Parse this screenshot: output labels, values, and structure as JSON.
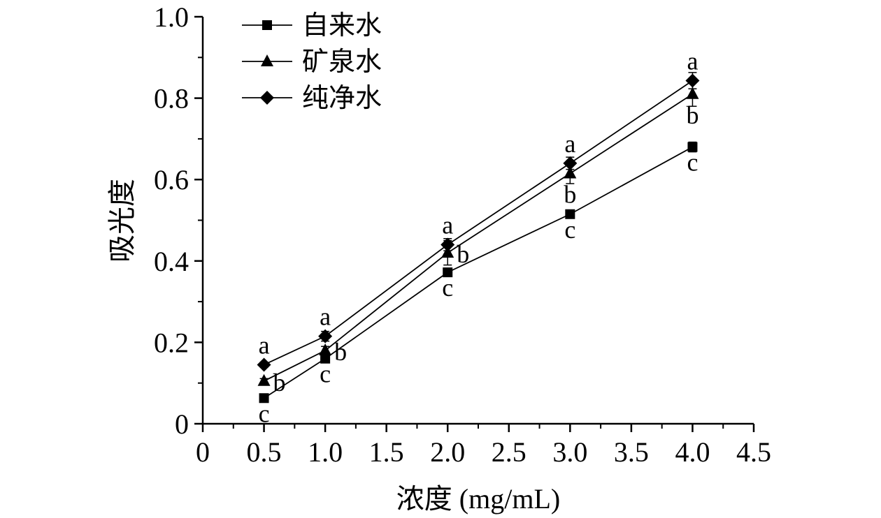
{
  "chart_data": {
    "type": "line",
    "xlabel": "浓度 (mg/mL)",
    "ylabel": "吸光度",
    "xlim": [
      0,
      4.5
    ],
    "ylim": [
      0,
      1.0
    ],
    "x_ticks": [
      0,
      0.5,
      1.0,
      1.5,
      2.0,
      2.5,
      3.0,
      3.5,
      4.0,
      4.5
    ],
    "x_tick_labels": [
      "0",
      "0.5",
      "1.0",
      "1.5",
      "2.0",
      "2.5",
      "3.0",
      "3.5",
      "4.0",
      "4.5"
    ],
    "y_ticks": [
      0,
      0.2,
      0.4,
      0.6,
      0.8,
      1.0
    ],
    "y_tick_labels": [
      "0",
      "0.2",
      "0.4",
      "0.6",
      "0.8",
      "1.0"
    ],
    "grid": false,
    "legend_position": "top-left",
    "x": [
      0.5,
      1.0,
      2.0,
      3.0,
      4.0
    ],
    "series": [
      {
        "name": "自来水",
        "marker": "square",
        "values": [
          0.063,
          0.16,
          0.372,
          0.515,
          0.68
        ],
        "error": [
          0.005,
          0.008,
          0.01,
          0.01,
          0.012
        ],
        "labels": [
          "c",
          "c",
          "c",
          "c",
          "c"
        ]
      },
      {
        "name": "矿泉水",
        "marker": "triangle",
        "values": [
          0.105,
          0.18,
          0.42,
          0.615,
          0.81
        ],
        "error": [
          0.006,
          0.01,
          0.03,
          0.025,
          0.03
        ],
        "labels": [
          "b",
          "b",
          "b",
          "b",
          "b"
        ]
      },
      {
        "name": "纯净水",
        "marker": "diamond",
        "values": [
          0.145,
          0.215,
          0.44,
          0.64,
          0.843
        ],
        "error": [
          0.006,
          0.012,
          0.015,
          0.015,
          0.02
        ],
        "labels": [
          "a",
          "a",
          "a",
          "a",
          "a"
        ]
      }
    ]
  }
}
